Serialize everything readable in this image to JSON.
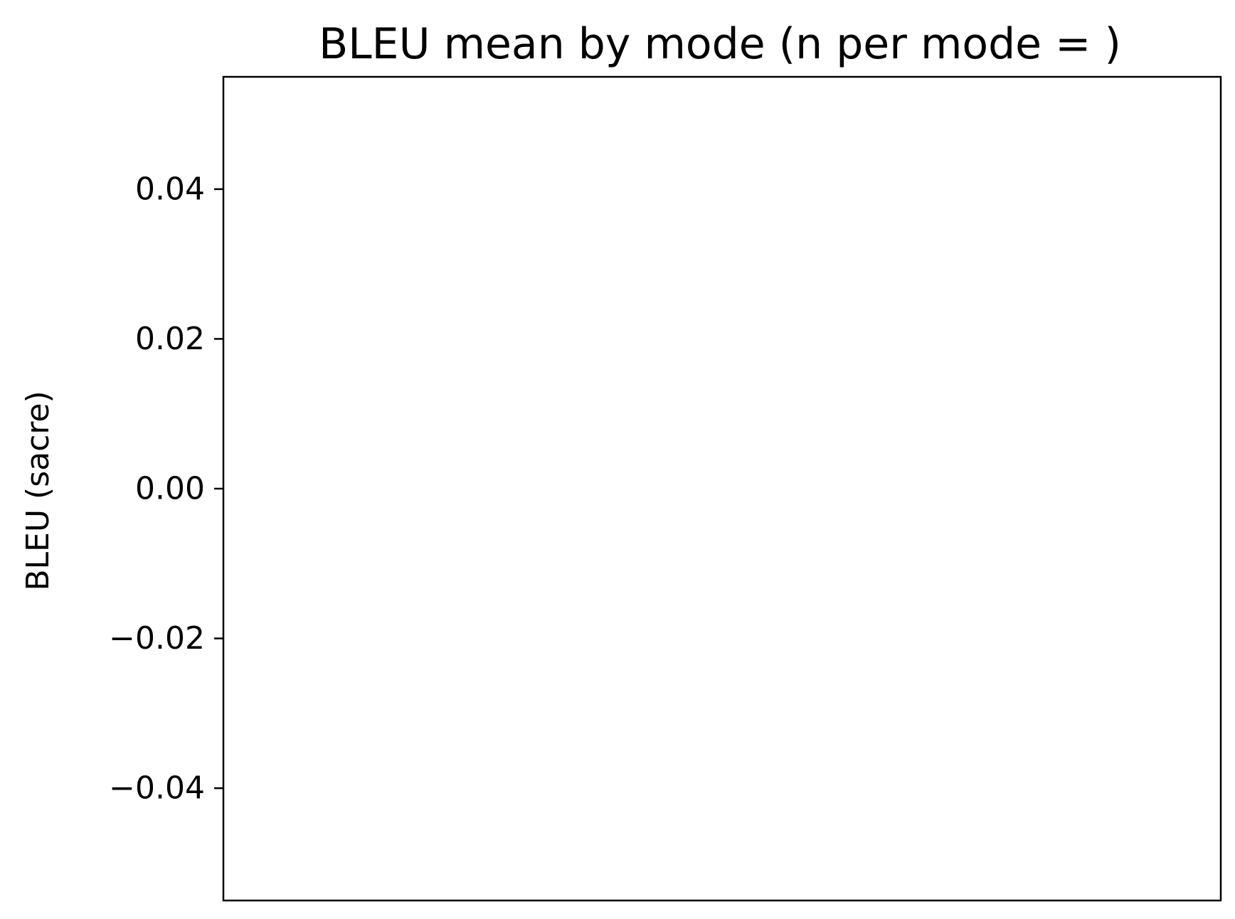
{
  "chart_data": {
    "type": "bar",
    "title": "BLEU mean by mode (n per mode = )",
    "xlabel": "",
    "ylabel": "BLEU (sacre)",
    "categories": [],
    "values": [],
    "ylim": [
      -0.055,
      0.055
    ],
    "yticks": [
      0.04,
      0.02,
      0.0,
      -0.02,
      -0.04
    ],
    "ytick_labels": [
      "0.04",
      "0.02",
      "0.00",
      "−0.02",
      "−0.04"
    ],
    "grid": false,
    "legend": "none"
  }
}
